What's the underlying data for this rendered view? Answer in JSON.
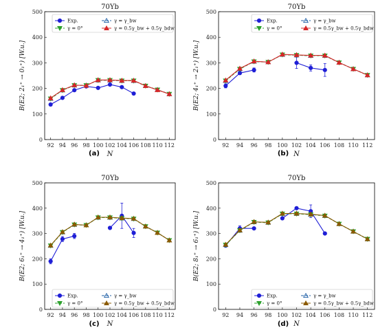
{
  "panels": [
    {
      "caption": "(a)",
      "title": "70Yb",
      "ylabel": "B(E2; 2₁⁺ → 0₁⁺) [W.u.]",
      "legend": [
        "Exp.",
        "γ = γ_bw",
        "γ = 0°",
        "γ = 0.5γ_bw + 0.5γ_bdw"
      ],
      "chart_data": {
        "type": "line",
        "xlabel": "N",
        "ylabel": "B(E2; 2₁⁺ → 0₁⁺) [W.u.]",
        "xlim": [
          91,
          113
        ],
        "ylim": [
          0,
          500
        ],
        "xticks": [
          92,
          94,
          96,
          98,
          100,
          102,
          104,
          106,
          108,
          110,
          112
        ],
        "yticks": [
          0,
          100,
          200,
          300,
          400,
          500
        ],
        "legend_position": "top-right",
        "series": [
          {
            "name": "Exp.",
            "color": "#1f1fd6",
            "marker": "circle",
            "dash": "",
            "x": [
              92,
              94,
              96,
              98,
              100,
              102,
              104,
              106
            ],
            "y": [
              137,
              163,
              193,
              208,
              202,
              215,
              205,
              180
            ],
            "err": [
              0,
              0,
              0,
              0,
              0,
              0,
              0,
              0
            ]
          },
          {
            "name": "γ = γ_bw",
            "color": "#1f5fa6",
            "marker": "tri-up-open",
            "dash": "4,2",
            "x": [
              92,
              94,
              96,
              98,
              100,
              102,
              104,
              106,
              108,
              110,
              112
            ],
            "y": [
              160,
              193,
              212,
              212,
              232,
              232,
              230,
              230,
              210,
              195,
              178
            ]
          },
          {
            "name": "γ = 0°",
            "color": "#2ca02c",
            "marker": "tri-down",
            "dash": "4,2",
            "x": [
              92,
              94,
              96,
              98,
              100,
              102,
              104,
              106,
              108,
              110,
              112
            ],
            "y": [
              160,
              193,
              212,
              212,
              232,
              232,
              230,
              230,
              210,
              195,
              178
            ]
          },
          {
            "name": "γ = 0.5γ_bw + 0.5γ_bdw",
            "color": "#d62728",
            "marker": "tri-up",
            "dash": "",
            "x": [
              92,
              94,
              96,
              98,
              100,
              102,
              104,
              106,
              108,
              110,
              112
            ],
            "y": [
              162,
              194,
              213,
              211,
              233,
              233,
              231,
              231,
              210,
              194,
              178
            ]
          }
        ]
      }
    },
    {
      "caption": "(b)",
      "title": "70Yb",
      "ylabel": "B(E2; 4₁⁺ → 2₁⁺) [W.u.]",
      "legend": [
        "Exp.",
        "γ = γ_bw",
        "γ = 0°",
        "γ = 0.5γ_bw + 0.5γ_bdw"
      ],
      "chart_data": {
        "type": "line",
        "xlabel": "N",
        "ylabel": "B(E2; 4₁⁺ → 2₁⁺) [W.u.]",
        "xlim": [
          91,
          113
        ],
        "ylim": [
          0,
          500
        ],
        "xticks": [
          92,
          94,
          96,
          98,
          100,
          102,
          104,
          106,
          108,
          110,
          112
        ],
        "yticks": [
          0,
          100,
          200,
          300,
          400,
          500
        ],
        "legend_position": "top-right",
        "series": [
          {
            "name": "Exp.",
            "color": "#1f1fd6",
            "marker": "circle",
            "dash": "",
            "x": [
              92,
              94,
              96,
              98,
              100,
              102,
              104,
              106
            ],
            "y": [
              210,
              260,
              272,
              null,
              null,
              300,
              280,
              272
            ],
            "err": [
              8,
              6,
              8,
              0,
              0,
              22,
              12,
              25
            ]
          },
          {
            "name": "γ = γ_bw",
            "color": "#1f5fa6",
            "marker": "tri-up-open",
            "dash": "4,2",
            "x": [
              92,
              94,
              96,
              98,
              100,
              102,
              104,
              106,
              108,
              110,
              112
            ],
            "y": [
              230,
              276,
              305,
              303,
              332,
              330,
              328,
              328,
              301,
              276,
              252
            ]
          },
          {
            "name": "γ = 0°",
            "color": "#2ca02c",
            "marker": "tri-down",
            "dash": "4,2",
            "x": [
              92,
              94,
              96,
              98,
              100,
              102,
              104,
              106,
              108,
              110,
              112
            ],
            "y": [
              230,
              276,
              305,
              303,
              332,
              330,
              328,
              328,
              301,
              276,
              252
            ]
          },
          {
            "name": "γ = 0.5γ_bw + 0.5γ_bdw",
            "color": "#d62728",
            "marker": "tri-up",
            "dash": "",
            "x": [
              92,
              94,
              96,
              98,
              100,
              102,
              104,
              106,
              108,
              110,
              112
            ],
            "y": [
              232,
              278,
              306,
              303,
              333,
              331,
              329,
              329,
              301,
              276,
              252
            ]
          }
        ]
      }
    },
    {
      "caption": "(c)",
      "title": "70Yb",
      "ylabel": "B(E2; 6₁⁺ → 4₁⁺) [W.u.]",
      "legend": [
        "Exp.",
        "γ = γ_bw",
        "γ = 0°",
        "γ = 0.5γ_bw + 0.5γ_bdw"
      ],
      "chart_data": {
        "type": "line",
        "xlabel": "N",
        "ylabel": "B(E2; 6₁⁺ → 4₁⁺) [W.u.]",
        "xlim": [
          91,
          113
        ],
        "ylim": [
          0,
          500
        ],
        "xticks": [
          92,
          94,
          96,
          98,
          100,
          102,
          104,
          106,
          108,
          110,
          112
        ],
        "yticks": [
          0,
          100,
          200,
          300,
          400,
          500
        ],
        "legend_position": "bottom-right",
        "series": [
          {
            "name": "Exp.",
            "color": "#1f1fd6",
            "marker": "circle",
            "dash": "",
            "x": [
              92,
              94,
              96,
              98,
              100,
              102,
              104,
              106
            ],
            "y": [
              190,
              278,
              290,
              null,
              null,
              322,
              370,
              302
            ],
            "err": [
              10,
              10,
              10,
              0,
              0,
              0,
              50,
              18
            ]
          },
          {
            "name": "γ = γ_bw",
            "color": "#1f5fa6",
            "marker": "tri-up-open",
            "dash": "4,2",
            "x": [
              92,
              94,
              96,
              98,
              100,
              102,
              104,
              106,
              108,
              110,
              112
            ],
            "y": [
              252,
              305,
              335,
              333,
              363,
              363,
              360,
              358,
              328,
              303,
              273
            ]
          },
          {
            "name": "γ = 0°",
            "color": "#2ca02c",
            "marker": "tri-down",
            "dash": "4,2",
            "x": [
              92,
              94,
              96,
              98,
              100,
              102,
              104,
              106,
              108,
              110,
              112
            ],
            "y": [
              252,
              305,
              335,
              333,
              363,
              363,
              360,
              358,
              328,
              303,
              273
            ]
          },
          {
            "name": "γ = 0.5γ_bw + 0.5γ_bdw",
            "color": "#8b5a00",
            "marker": "tri-up",
            "dash": "",
            "x": [
              92,
              94,
              96,
              98,
              100,
              102,
              104,
              106,
              108,
              110,
              112
            ],
            "y": [
              253,
              306,
              336,
              333,
              364,
              364,
              361,
              359,
              328,
              303,
              273
            ]
          }
        ]
      }
    },
    {
      "caption": "(d)",
      "title": "70Yb",
      "ylabel": "B(E2; 8₁⁺ → 6₁⁺) [W.u.]",
      "legend": [
        "Exp.",
        "γ = γ_bw",
        "γ = 0°",
        "γ = 0.5γ_bw + 0.5γ_bdw"
      ],
      "chart_data": {
        "type": "line",
        "xlabel": "N",
        "ylabel": "B(E2; 8₁⁺ → 6₁⁺) [W.u.]",
        "xlim": [
          91,
          113
        ],
        "ylim": [
          0,
          500
        ],
        "xticks": [
          92,
          94,
          96,
          98,
          100,
          102,
          104,
          106,
          108,
          110,
          112
        ],
        "yticks": [
          0,
          100,
          200,
          300,
          400,
          500
        ],
        "legend_position": "bottom-right",
        "series": [
          {
            "name": "Exp.",
            "color": "#1f1fd6",
            "marker": "circle",
            "dash": "",
            "x": [
              92,
              94,
              96,
              98,
              100,
              102,
              104,
              106
            ],
            "y": [
              252,
              320,
              320,
              null,
              360,
              400,
              388,
              300
            ],
            "err": [
              0,
              10,
              0,
              0,
              0,
              0,
              25,
              0
            ]
          },
          {
            "name": "γ = γ_bw",
            "color": "#1f5fa6",
            "marker": "tri-up-open",
            "dash": "4,2",
            "x": [
              92,
              94,
              96,
              98,
              100,
              102,
              104,
              106,
              108,
              110,
              112
            ],
            "y": [
              255,
              312,
              345,
              343,
              378,
              378,
              375,
              370,
              338,
              308,
              278
            ]
          },
          {
            "name": "γ = 0°",
            "color": "#2ca02c",
            "marker": "tri-down",
            "dash": "4,2",
            "x": [
              92,
              94,
              96,
              98,
              100,
              102,
              104,
              106,
              108,
              110,
              112
            ],
            "y": [
              255,
              312,
              345,
              343,
              378,
              378,
              375,
              370,
              338,
              308,
              278
            ]
          },
          {
            "name": "γ = 0.5γ_bw + 0.5γ_bdw",
            "color": "#8b5a00",
            "marker": "tri-up",
            "dash": "",
            "x": [
              92,
              94,
              96,
              98,
              100,
              102,
              104,
              106,
              108,
              110,
              112
            ],
            "y": [
              256,
              313,
              346,
              344,
              379,
              379,
              376,
              371,
              338,
              308,
              278
            ]
          }
        ]
      }
    }
  ]
}
